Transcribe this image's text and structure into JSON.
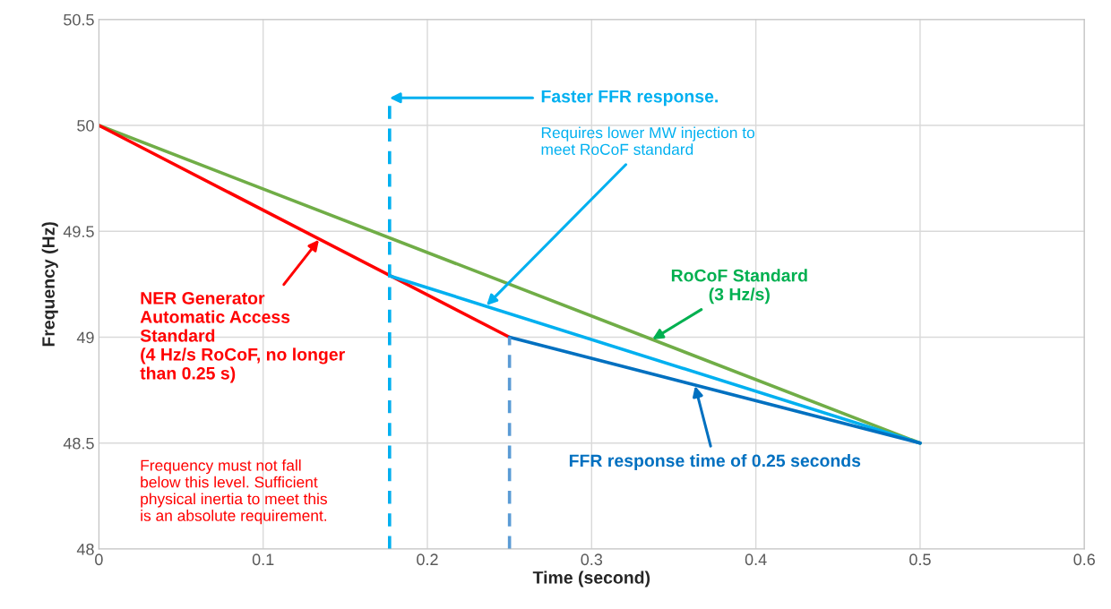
{
  "chart_data": {
    "type": "line",
    "xlabel": "Time (second)",
    "ylabel": "Frequency (Hz)",
    "xlim": [
      0,
      0.6
    ],
    "xticks": [
      0,
      0.1,
      0.2,
      0.3,
      0.4,
      0.5,
      0.6
    ],
    "ylim": [
      48,
      50.5
    ],
    "yticks": [
      48,
      48.5,
      49,
      49.5,
      50,
      50.5
    ],
    "grid": true,
    "marker": "none",
    "series": [
      {
        "color": "#70ad47",
        "x": [
          0,
          0.5
        ],
        "values": [
          50,
          48.5
        ]
      },
      {
        "color": "#ff0000",
        "x": [
          0,
          0.25
        ],
        "values": [
          50,
          49
        ]
      },
      {
        "color": "#00b0f0",
        "x": [
          0.177,
          0.5
        ],
        "values": [
          49.29,
          48.5
        ]
      },
      {
        "color": "#0070c0",
        "x": [
          0.25,
          0.5
        ],
        "values": [
          49,
          48.5
        ]
      },
      {
        "color": "#00b0f0",
        "x": [
          0.177,
          0.177
        ],
        "values": [
          48,
          50.13
        ],
        "line_style": "dashed"
      },
      {
        "color": "#5b9bd5",
        "x": [
          0.25,
          0.25
        ],
        "values": [
          48,
          49
        ],
        "line_style": "dashed"
      }
    ],
    "annotations": [
      {
        "text": "Faster FFR response.",
        "x": 0.177,
        "y": 50.13
      },
      {
        "text": "Requires lower MW injection to\nmeet RoCoF standard",
        "x": 0.236,
        "y": 49.15
      },
      {
        "text": "RoCoF Standard\n(3 Hz/s)",
        "x": 0.337,
        "y": 48.99
      },
      {
        "text": "NER Generator\nAutomatic Access\nStandard\n(4 Hz/s RoCoF, no longer\nthan 0.25 s)",
        "x": 0.134,
        "y": 49.46
      },
      "Frequency must not fall\nbelow this level. Sufficient\nphysical inertia to meet this\nis an absolute requirement.",
      {
        "text": "FFR response time of 0.25 seconds",
        "x": 0.363,
        "y": 48.77
      }
    ]
  }
}
